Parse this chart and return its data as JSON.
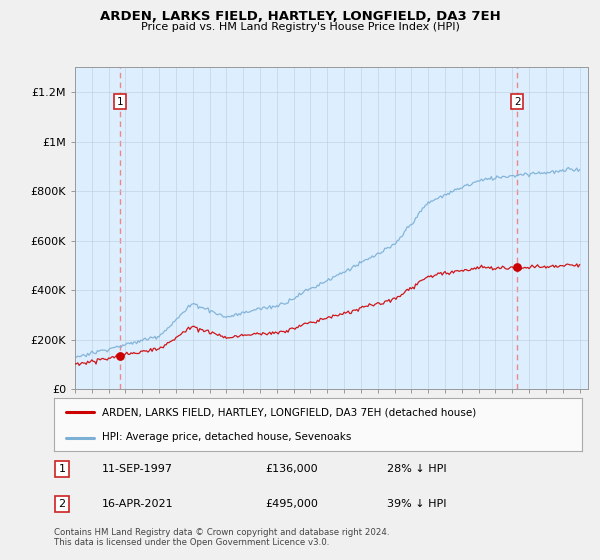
{
  "title": "ARDEN, LARKS FIELD, HARTLEY, LONGFIELD, DA3 7EH",
  "subtitle": "Price paid vs. HM Land Registry's House Price Index (HPI)",
  "legend_label_red": "ARDEN, LARKS FIELD, HARTLEY, LONGFIELD, DA3 7EH (detached house)",
  "legend_label_blue": "HPI: Average price, detached house, Sevenoaks",
  "point1_label": "1",
  "point1_date": "11-SEP-1997",
  "point1_price": "£136,000",
  "point1_hpi": "28% ↓ HPI",
  "point2_label": "2",
  "point2_date": "16-APR-2021",
  "point2_price": "£495,000",
  "point2_hpi": "39% ↓ HPI",
  "footnote": "Contains HM Land Registry data © Crown copyright and database right 2024.\nThis data is licensed under the Open Government Licence v3.0.",
  "ylim": [
    0,
    1300000
  ],
  "yticks": [
    0,
    200000,
    400000,
    600000,
    800000,
    1000000,
    1200000
  ],
  "ytick_labels": [
    "£0",
    "£200K",
    "£400K",
    "£600K",
    "£800K",
    "£1M",
    "£1.2M"
  ],
  "x_start_year": 1995,
  "x_end_year": 2025,
  "sale1_year": 1997.7,
  "sale1_price": 136000,
  "sale2_year": 2021.3,
  "sale2_price": 495000,
  "red_line_color": "#cc0000",
  "blue_line_color": "#7bafd4",
  "point_color": "#cc0000",
  "dashed_line_color": "#ee8888",
  "background_color": "#f0f0f0",
  "plot_bg_color": "#ddeeff"
}
